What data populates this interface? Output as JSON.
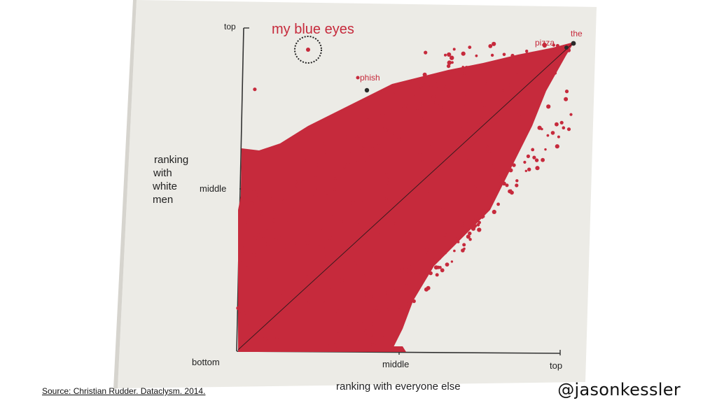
{
  "slide": {
    "source": "Source: Christian Rudder. Dataclysm. 2014.",
    "handle": "@jasonkessler"
  },
  "colors": {
    "point": "#c62a3c",
    "highlight": "#c62a3c",
    "dark_point": "#2a2a2a",
    "paper": "#ecebe6",
    "axis": "#333333"
  },
  "chart_data": {
    "type": "scatter",
    "xlabel": "ranking with everyone else",
    "ylabel": "ranking with white men",
    "x_ticks": [
      "bottom",
      "middle",
      "top"
    ],
    "y_ticks": [
      "top",
      "middle"
    ],
    "highlight_label": "my blue eyes",
    "annotations": [
      {
        "label": "my blue eyes",
        "x": 0.25,
        "y": 0.98,
        "circled": true
      },
      {
        "label": "phish",
        "x": 0.38,
        "y": 0.82
      },
      {
        "label": "pizza",
        "x": 0.99,
        "y": 0.99
      },
      {
        "label": "the",
        "x": 1.0,
        "y": 1.0
      }
    ],
    "outliers": [
      {
        "x": 0.56,
        "y": 0.97
      },
      {
        "x": 0.82,
        "y": 0.96
      },
      {
        "x": 0.05,
        "y": 0.85
      }
    ],
    "diagonal": true,
    "grid": false
  }
}
